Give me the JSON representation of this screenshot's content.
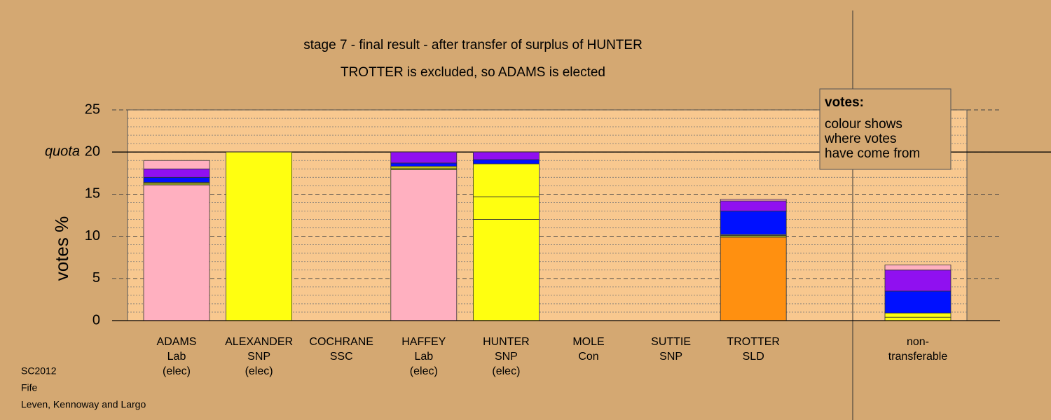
{
  "chart_data": {
    "type": "stacked_bar",
    "title": "stage 7 - final result - after transfer of surplus of HUNTER",
    "subtitle": "TROTTER is excluded, so ADAMS is elected",
    "y_label": "votes %",
    "categories": [
      [
        "ADAMS",
        "Lab",
        "(elec)"
      ],
      [
        "ALEXANDER",
        "SNP",
        "(elec)"
      ],
      [
        "COCHRANE",
        "SSC"
      ],
      [
        "HAFFEY",
        "Lab",
        "(elec)"
      ],
      [
        "HUNTER",
        "SNP",
        "(elec)"
      ],
      [
        "MOLE",
        "Con"
      ],
      [
        "SUTTIE",
        "SNP"
      ],
      [
        "TROTTER",
        "SLD"
      ],
      [
        "non-",
        "transferable"
      ]
    ],
    "series": [
      {
        "color": "#ffb0c0",
        "values": [
          16.1,
          0,
          0,
          17.9,
          0,
          0,
          0,
          0,
          0
        ]
      },
      {
        "color": "#ff9010",
        "values": [
          0,
          0,
          0,
          0,
          0,
          0,
          0,
          9.9,
          0
        ]
      },
      {
        "color": "#ffff10",
        "values": [
          0,
          20,
          0,
          0,
          12.0,
          0,
          0,
          0,
          0.4
        ]
      },
      {
        "color": "#a0b020",
        "values": [
          0.2,
          0,
          0,
          0.2,
          0,
          0,
          0,
          0.2,
          0
        ]
      },
      {
        "color": "#ffff10",
        "values": [
          0.1,
          0,
          0,
          0.2,
          2.7,
          0,
          0,
          0.1,
          0.5
        ]
      },
      {
        "color": "#ffff10",
        "values": [
          0,
          0,
          0,
          0,
          3.9,
          0,
          0,
          0,
          0
        ]
      },
      {
        "color": "#0010ff",
        "values": [
          0.6,
          0,
          0,
          0.4,
          0.5,
          0,
          0,
          2.8,
          2.6
        ]
      },
      {
        "color": "#9010f0",
        "values": [
          1.0,
          0,
          0,
          1.3,
          0.9,
          0,
          0,
          1.2,
          2.5
        ]
      },
      {
        "color": "#ffb0c0",
        "values": [
          1.0,
          0,
          0,
          0,
          0,
          0,
          0,
          0.2,
          0.6
        ]
      }
    ],
    "ylim": [
      0,
      25
    ],
    "yticks": [
      0,
      5,
      10,
      15,
      20,
      25
    ],
    "minor_yticks": [
      1,
      2,
      3,
      4,
      6,
      7,
      8,
      9,
      11,
      12,
      13,
      14,
      16,
      17,
      18,
      19,
      21,
      22,
      23,
      24
    ],
    "quota": 20,
    "quota_label": "quota",
    "annotation": {
      "title": "votes:",
      "lines": [
        "colour shows",
        "where votes",
        "have come from"
      ]
    },
    "footer": [
      "SC2012",
      "Fife",
      "Leven, Kennoway and Largo"
    ]
  }
}
